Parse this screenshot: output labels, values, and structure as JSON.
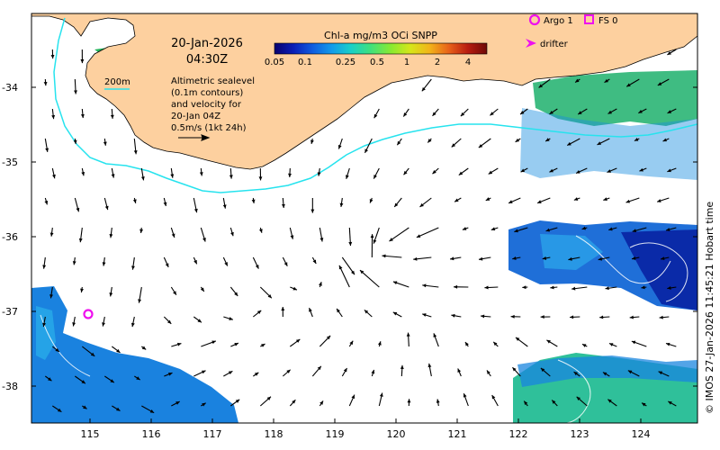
{
  "map": {
    "date": "20-Jan-2026",
    "time": "04:30Z",
    "colorbar_title": "Chl-a mg/m3 OCi SNPP",
    "colorbar_ticks": [
      "0.05",
      "0.1",
      "0.25",
      "0.5",
      "1",
      "2",
      "4"
    ],
    "colorbar_colors": [
      "#08006e",
      "#0a1fb8",
      "#0f5de0",
      "#129bea",
      "#18d0c8",
      "#3ee07e",
      "#8aea30",
      "#d6e61a",
      "#f2b41a",
      "#e8621a",
      "#b81c10",
      "#6e0a08"
    ],
    "contour_scale": "200m",
    "description_lines": [
      "Altimetric sealevel",
      "(0.1m contours)",
      "and velocity for",
      "20-Jan 04Z",
      "0.5m/s (1kt 24h)"
    ],
    "legend": {
      "argo": "Argo 1",
      "fs": "FS 0",
      "drifter": "drifter"
    },
    "lat_ticks": [
      "-34",
      "-35",
      "-36",
      "-37",
      "-38"
    ],
    "lon_ticks": [
      "115",
      "116",
      "117",
      "118",
      "119",
      "120",
      "121",
      "122",
      "123",
      "124"
    ],
    "credit": "© IMOS 27-Jan-2026 11:45:21 Hobart time",
    "colors": {
      "land": "#fdd09f",
      "ocean": "#ffffff",
      "contour_200m": "#27e3ee",
      "argo_marker": "#ee10ee",
      "arrow": "#000000"
    }
  }
}
